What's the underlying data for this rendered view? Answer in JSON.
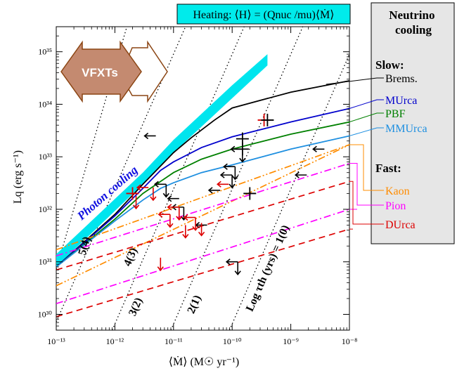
{
  "chart_data": {
    "type": "line",
    "title": "",
    "xlabel": "⟨Ṁ⟩ (M☉ yr⁻¹)",
    "ylabel": "Lq (erg s⁻¹)",
    "x_log": true,
    "y_log": true,
    "xlim": [
      1e-13,
      1e-08
    ],
    "ylim": [
      5e+29,
      3e+35
    ],
    "x_ticks": [
      {
        "value": 1e-13,
        "label": "10⁻¹³"
      },
      {
        "value": 1e-12,
        "label": "10⁻¹²"
      },
      {
        "value": 1e-11,
        "label": "10⁻¹¹"
      },
      {
        "value": 1e-10,
        "label": "10⁻¹⁰"
      },
      {
        "value": 1e-09,
        "label": "10⁻⁹"
      },
      {
        "value": 1e-08,
        "label": "10⁻⁸"
      }
    ],
    "y_ticks": [
      {
        "value": 1e+30,
        "label": "10³⁰"
      },
      {
        "value": 1e+31,
        "label": "10³¹"
      },
      {
        "value": 1e+32,
        "label": "10³²"
      },
      {
        "value": 1e+33,
        "label": "10³³"
      },
      {
        "value": 1e+34,
        "label": "10³⁴"
      },
      {
        "value": 1e+35,
        "label": "10³⁵"
      }
    ],
    "heating_band": {
      "label": "Photon cooling",
      "color": "#00e5ee",
      "lower": [
        [
          1e-13,
          8e+30
        ],
        [
          3e-12,
          3e+32
        ],
        [
          1e-11,
          1.2e+33
        ],
        [
          1e-10,
          1.3e+34
        ],
        [
          4e-10,
          5.5e+34
        ]
      ],
      "upper": [
        [
          1e-13,
          1.4e+31
        ],
        [
          3e-12,
          5e+32
        ],
        [
          1e-11,
          2.1e+33
        ],
        [
          1e-10,
          2.3e+34
        ],
        [
          4e-10,
          9e+34
        ]
      ]
    },
    "heating_label": "Heating: ⟨H⟩ = (Qnuc /mu)⟨Ṁ⟩",
    "vfxts_label": "VFXTs",
    "series": [
      {
        "name": "Brems.",
        "group": "Slow",
        "color": "#000000",
        "dash": "solid",
        "x": [
          1e-13,
          1e-12,
          3e-12,
          1e-11,
          2e-11,
          5e-11,
          1e-10,
          1e-09,
          1e-08
        ],
        "y": [
          8e+30,
          8e+31,
          3e+32,
          1.2e+33,
          2.3e+33,
          5e+33,
          8.5e+33,
          1.7e+34,
          2.8e+34
        ]
      },
      {
        "name": "MUrca",
        "group": "Slow",
        "color": "#0000cc",
        "dash": "solid",
        "x": [
          1e-13,
          1e-12,
          3e-12,
          6e-12,
          1e-11,
          3e-11,
          1e-10,
          1e-09,
          1e-08
        ],
        "y": [
          8e+30,
          7.5e+31,
          2.5e+32,
          5.5e+32,
          8e+32,
          1.5e+33,
          2.4e+33,
          4.6e+33,
          8.3e+33
        ]
      },
      {
        "name": "PBF",
        "group": "Slow",
        "color": "#008000",
        "dash": "solid",
        "x": [
          1e-13,
          1e-12,
          3e-12,
          1e-11,
          3e-11,
          1e-10,
          1e-09,
          1e-08
        ],
        "y": [
          8e+30,
          6.5e+31,
          2e+32,
          5e+32,
          9e+32,
          1.4e+33,
          2.7e+33,
          4.6e+33
        ]
      },
      {
        "name": "MMUrca",
        "group": "Slow",
        "color": "#1e8fe0",
        "dash": "solid",
        "x": [
          1e-13,
          1e-12,
          3e-12,
          6e-12,
          1e-11,
          3e-11,
          1e-10,
          1e-09,
          1e-08
        ],
        "y": [
          8e+30,
          6e+31,
          1.5e+32,
          2.5e+32,
          3.2e+32,
          5e+32,
          7e+32,
          1.4e+33,
          2.5e+33
        ]
      },
      {
        "name": "Kaon",
        "group": "Fast",
        "color": "#ff8c00",
        "dash": "dashdotdot",
        "x": [
          1e-13,
          1e-08
        ],
        "y": [
          3.5e+30,
          1.7e+33
        ]
      },
      {
        "name": "Kaon",
        "group": "Fast",
        "color": "#ff8c00",
        "dash": "dashdotdot",
        "x": [
          1e-13,
          1e-08
        ],
        "y": [
          1.7e+31,
          1.7e+33
        ]
      },
      {
        "name": "Pion",
        "group": "Fast",
        "color": "#ff00ff",
        "dash": "dashdot",
        "x": [
          1e-13,
          1e-08
        ],
        "y": [
          1.3e+31,
          7.5e+32
        ]
      },
      {
        "name": "Pion",
        "group": "Fast",
        "color": "#ff00ff",
        "dash": "dashdot",
        "x": [
          1e-13,
          1e-08
        ],
        "y": [
          1.6e+30,
          1e+32
        ]
      },
      {
        "name": "DUrca",
        "group": "Fast",
        "color": "#dd0000",
        "dash": "dashed",
        "x": [
          1e-13,
          1e-08
        ],
        "y": [
          7e+30,
          3.4e+32
        ]
      },
      {
        "name": "DUrca",
        "group": "Fast",
        "color": "#dd0000",
        "dash": "dashed",
        "x": [
          1e-13,
          1e-08
        ],
        "y": [
          9e+29,
          4.2e+31
        ]
      }
    ],
    "isochrones": [
      {
        "label": "5(4)",
        "x": [
          1e-13,
          1.6e-12
        ],
        "y": [
          7.2e+30,
          3e+35
        ]
      },
      {
        "label": "4(3)",
        "x": [
          1e-13,
          1.6e-11
        ],
        "y": [
          7.2e+29,
          3e+35
        ]
      },
      {
        "label": "3(2)",
        "x": [
          9e-13,
          1.6e-10
        ],
        "y": [
          5e+29,
          3e+35
        ]
      },
      {
        "label": "2(1)",
        "x": [
          9e-12,
          1.6e-09
        ],
        "y": [
          5e+29,
          3e+35
        ]
      },
      {
        "label": "Log τth (yrs) = 1(0)",
        "x": [
          9e-11,
          1.6e-08
        ],
        "y": [
          5e+29,
          3e+35
        ]
      }
    ],
    "limit_markers": [
      {
        "color": "#000000",
        "type": "left",
        "x": 4e-12,
        "y": 2.5e+33
      },
      {
        "color": "#000000",
        "type": "left_down",
        "x": 1.2e-10,
        "y": 1.4e+33
      },
      {
        "color": "#000000",
        "type": "left_down",
        "x": 9e-11,
        "y": 6.5e+32
      },
      {
        "color": "#000000",
        "type": "left_down",
        "x": 8e-11,
        "y": 4.5e+32
      },
      {
        "color": "#000000",
        "type": "left_down",
        "x": 6e-12,
        "y": 3e+32
      },
      {
        "color": "#000000",
        "type": "left",
        "x": 5e-11,
        "y": 2.3e+32
      },
      {
        "color": "#000000",
        "type": "left",
        "x": 1e-11,
        "y": 1.6e+32
      },
      {
        "color": "#000000",
        "type": "left_down",
        "x": 1.2e-11,
        "y": 1.1e+32
      },
      {
        "color": "#000000",
        "type": "left",
        "x": 1.5e-09,
        "y": 4.5e+32
      },
      {
        "color": "#000000",
        "type": "left",
        "x": 3e-09,
        "y": 1.4e+33
      },
      {
        "color": "#000000",
        "type": "left",
        "x": 3e-11,
        "y": 5e+31
      },
      {
        "color": "#000000",
        "type": "left_down",
        "x": 1e-10,
        "y": 1e+31
      },
      {
        "color": "#dd0000",
        "type": "down",
        "x": 2.3e-12,
        "y": 1.8e+32
      },
      {
        "color": "#dd0000",
        "type": "down",
        "x": 4.5e-12,
        "y": 2.6e+32
      },
      {
        "color": "#dd0000",
        "type": "left_down",
        "x": 1e-11,
        "y": 1.1e+32
      },
      {
        "color": "#dd0000",
        "type": "left_down",
        "x": 7e-12,
        "y": 8e+31
      },
      {
        "color": "#dd0000",
        "type": "left_down",
        "x": 1.9e-11,
        "y": 7e+31
      },
      {
        "color": "#dd0000",
        "type": "down",
        "x": 3e-11,
        "y": 5.5e+31
      },
      {
        "color": "#dd0000",
        "type": "down",
        "x": 1.6e-11,
        "y": 5e+31
      },
      {
        "color": "#dd0000",
        "type": "left",
        "x": 3e-12,
        "y": 2.6e+32
      },
      {
        "color": "#dd0000",
        "type": "down",
        "x": 6e-12,
        "y": 1.2e+31
      },
      {
        "color": "#dd0000",
        "type": "left",
        "x": 7e-11,
        "y": 3e+32
      }
    ],
    "detections": [
      {
        "color": "#000000",
        "x": 1.5e-10,
        "y": 2.2e+33
      },
      {
        "color": "#000000",
        "x": 2e-10,
        "y": 2e+32
      },
      {
        "color": "#000000",
        "x": 1.5e-10,
        "y": 1.4e+33
      },
      {
        "color": "#dd0000",
        "x": 3.5e-10,
        "y": 5e+33
      },
      {
        "color": "#dd0000",
        "x": 2e-12,
        "y": 2e+32
      },
      {
        "color": "#000000",
        "x": 4e-10,
        "y": 5e+33
      }
    ],
    "legend": {
      "title": "Neutrino cooling",
      "slow_label": "Slow:",
      "fast_label": "Fast:",
      "placement": "right"
    }
  }
}
